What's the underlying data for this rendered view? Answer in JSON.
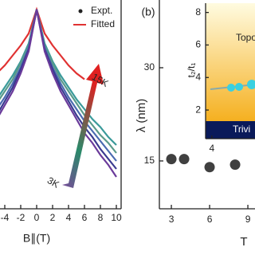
{
  "chart_data": [
    {
      "type": "line",
      "x_label": "B∥(T)",
      "x": [
        -5,
        -4,
        -3,
        -2,
        -1,
        0,
        1,
        2,
        3,
        4,
        5,
        6,
        7,
        8,
        9,
        10
      ],
      "series": [
        {
          "color": "#e03232",
          "values": [
            0.68,
            0.72,
            0.77,
            0.82,
            0.88,
            1,
            0.88,
            0.82,
            0.77,
            0.72,
            0.68,
            0.65,
            null,
            null,
            null,
            null
          ]
        },
        {
          "color": "#3a9a9a",
          "values": [
            0.55,
            0.61,
            0.67,
            0.74,
            0.83,
            1,
            0.83,
            0.74,
            0.67,
            0.61,
            0.55,
            0.5,
            0.45,
            0.41,
            0.36,
            0.32
          ]
        },
        {
          "color": "#5a9a8a",
          "values": [
            0.53,
            0.59,
            0.65,
            0.73,
            0.82,
            1,
            0.82,
            0.73,
            0.65,
            0.59,
            0.53,
            0.47,
            0.42,
            0.37,
            0.33,
            0.28
          ]
        },
        {
          "color": "#4a6ab0",
          "values": [
            0.5,
            0.56,
            0.63,
            0.71,
            0.81,
            1,
            0.81,
            0.71,
            0.63,
            0.56,
            0.5,
            0.44,
            0.39,
            0.34,
            0.29,
            0.24
          ]
        },
        {
          "color": "#3a3a90",
          "values": [
            0.47,
            0.54,
            0.61,
            0.7,
            0.8,
            1,
            0.8,
            0.7,
            0.61,
            0.54,
            0.47,
            0.41,
            0.36,
            0.3,
            0.25,
            0.2
          ]
        },
        {
          "color": "#6a3a9a",
          "values": [
            0.45,
            0.52,
            0.59,
            0.68,
            0.79,
            1,
            0.79,
            0.68,
            0.59,
            0.52,
            0.45,
            0.38,
            0.33,
            0.27,
            0.22,
            0.16
          ]
        }
      ],
      "legend": [
        "Expt.",
        "Fitted"
      ],
      "annotations": [
        "15K",
        "3K"
      ],
      "xlim": [
        -4.6,
        10.6
      ],
      "xticks": [
        -4,
        -2,
        0,
        2,
        4,
        6,
        8,
        10
      ],
      "ylim": [
        0,
        1.04
      ]
    },
    {
      "type": "scatter",
      "panel_label": "(b)",
      "x_label": "T",
      "y_label": "λ (nm)",
      "x": [
        3,
        4,
        6,
        8
      ],
      "values": [
        15.3,
        15.3,
        14.0,
        14.4
      ],
      "color": "#404040",
      "xlim": [
        2.06,
        9.56
      ],
      "xticks": [
        3,
        6,
        9
      ],
      "ylim": [
        7.3,
        40.9
      ],
      "yticks": [
        15,
        30
      ],
      "inset": {
        "y_label": "t₂/t₁",
        "labels": [
          "Topo",
          "Trivi"
        ],
        "xlim": [
          3.5,
          6.5
        ],
        "xticks": [
          4
        ],
        "ylim": [
          0.24,
          8.57
        ],
        "yticks": [
          2,
          4,
          6,
          8
        ]
      }
    }
  ]
}
